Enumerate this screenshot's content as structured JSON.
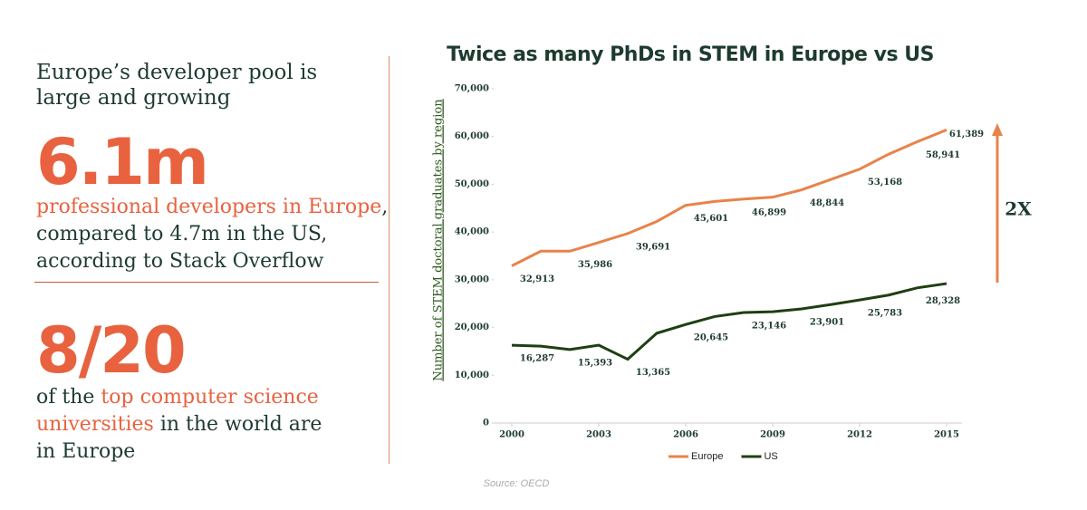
{
  "left": {
    "headline": "Europe’s developer pool is large and growing",
    "stat1": "6.1m",
    "stat1_highlight": "professional developers in Europe",
    "stat1_text": ", compared to 4.7m in the US, according to Stack Overflow",
    "stat2": "8/20",
    "stat2_pre": "of the ",
    "stat2_highlight": "top computer science universities",
    "stat2_text": " in the world are in Europe"
  },
  "chart_data": {
    "type": "line",
    "title": "Twice as many PhDs in STEM in Europe vs US",
    "y_label": "Number of STEM doctoral graduates by region",
    "annotation": "2X",
    "source": "Source: OECD",
    "x": [
      2000,
      2001,
      2002,
      2003,
      2004,
      2005,
      2006,
      2007,
      2008,
      2009,
      2010,
      2011,
      2012,
      2013,
      2014,
      2015
    ],
    "xlim": [
      2000,
      2015
    ],
    "xticks": [
      2000,
      2003,
      2006,
      2009,
      2012,
      2015
    ],
    "ylim": [
      0,
      70000
    ],
    "yticks": [
      0,
      {
        "value": 10000,
        "label": "10,000"
      },
      {
        "value": 20000,
        "label": "20,000"
      },
      {
        "value": 30000,
        "label": "30,000"
      },
      {
        "value": 40000,
        "label": "40,000"
      },
      {
        "value": 50000,
        "label": "50,000"
      },
      {
        "value": 60000,
        "label": "60,000"
      },
      {
        "value": 70000,
        "label": "70,000"
      }
    ],
    "legend": "bottom",
    "series": [
      {
        "name": "Europe",
        "color": "#e8834a",
        "values": [
          32913,
          36000,
          35986,
          37800,
          39691,
          42200,
          45601,
          46400,
          46899,
          47300,
          48844,
          51000,
          53168,
          56300,
          58941,
          61389
        ],
        "value_labels": [
          "32,913",
          null,
          "35,986",
          null,
          "39,691",
          null,
          "45,601",
          null,
          "46,899",
          null,
          "48,844",
          null,
          "53,168",
          null,
          "58,941",
          "61,389"
        ]
      },
      {
        "name": "US",
        "color": "#1e3f12",
        "values": [
          16287,
          16100,
          15393,
          16300,
          13365,
          18800,
          20645,
          22300,
          23146,
          23300,
          23901,
          24800,
          25783,
          26800,
          28328,
          29200
        ],
        "value_labels": [
          "16,287",
          null,
          "15,393",
          null,
          "13,365",
          null,
          "20,645",
          null,
          "23,146",
          null,
          "23,901",
          null,
          "25,783",
          null,
          "28,328",
          null
        ]
      }
    ]
  }
}
